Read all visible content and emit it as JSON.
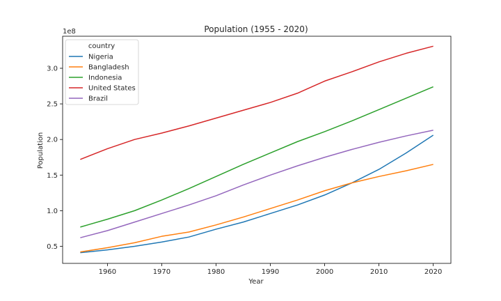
{
  "chart_data": {
    "type": "line",
    "title": "Population (1955 - 2020)",
    "xlabel": "Year",
    "ylabel": "Population",
    "y_offset_label": "1e8",
    "legend_title": "country",
    "legend_position": "top-left",
    "grid": false,
    "xlim": [
      1951.75,
      2023.25
    ],
    "ylim": [
      26000000,
      345000000
    ],
    "x_ticks": [
      1960,
      1970,
      1980,
      1990,
      2000,
      2010,
      2020
    ],
    "y_ticks": [
      50000000,
      100000000,
      150000000,
      200000000,
      250000000,
      300000000
    ],
    "y_tick_labels": [
      "0.5",
      "1.0",
      "1.5",
      "2.0",
      "2.5",
      "3.0"
    ],
    "x": [
      1955,
      1960,
      1965,
      1970,
      1975,
      1980,
      1985,
      1990,
      1995,
      2000,
      2005,
      2010,
      2015,
      2020
    ],
    "series": [
      {
        "name": "Nigeria",
        "color": "#1f77b4",
        "values": [
          41000000,
          45000000,
          50000000,
          56000000,
          63000000,
          74000000,
          84000000,
          96000000,
          108000000,
          122000000,
          139000000,
          158000000,
          181000000,
          206000000
        ]
      },
      {
        "name": "Bangladesh",
        "color": "#ff7f0e",
        "values": [
          42000000,
          48000000,
          55000000,
          64000000,
          70000000,
          80000000,
          91000000,
          103000000,
          115000000,
          128000000,
          139000000,
          148000000,
          156000000,
          165000000
        ]
      },
      {
        "name": "Indonesia",
        "color": "#2ca02c",
        "values": [
          77000000,
          88000000,
          100000000,
          115000000,
          131000000,
          148000000,
          165000000,
          181000000,
          197000000,
          211000000,
          226000000,
          242000000,
          258000000,
          274000000
        ]
      },
      {
        "name": "United States",
        "color": "#d62728",
        "values": [
          172000000,
          187000000,
          200000000,
          209000000,
          219000000,
          230000000,
          241000000,
          252000000,
          265000000,
          282000000,
          295000000,
          309000000,
          321000000,
          331000000
        ]
      },
      {
        "name": "Brazil",
        "color": "#9467bd",
        "values": [
          62000000,
          72000000,
          84000000,
          96000000,
          108000000,
          121000000,
          136000000,
          150000000,
          163000000,
          175000000,
          186000000,
          196000000,
          205000000,
          213000000
        ]
      }
    ]
  }
}
